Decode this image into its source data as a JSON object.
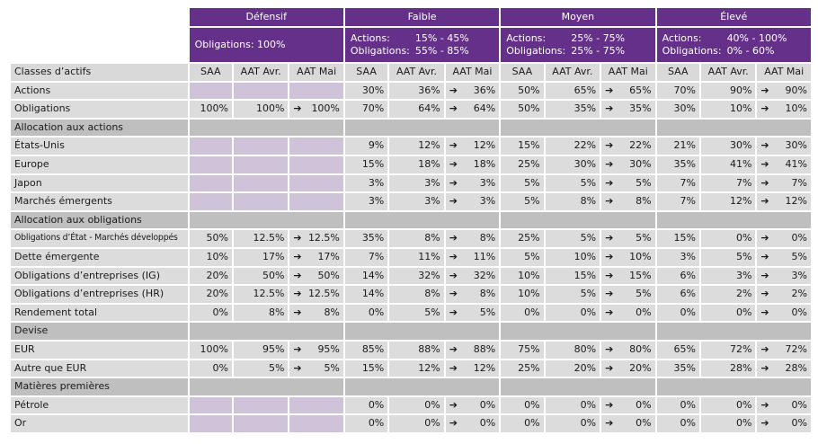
{
  "groups": [
    {
      "name": "Défensif",
      "lines": [
        {
          "k": "Obligations:",
          "v": "100%",
          "inline": true
        }
      ]
    },
    {
      "name": "Faible",
      "lines": [
        {
          "k": "Actions:",
          "v": "15% - 45%"
        },
        {
          "k": "Obligations:",
          "v": "55% - 85%"
        }
      ]
    },
    {
      "name": "Moyen",
      "lines": [
        {
          "k": "Actions:",
          "v": "25% - 75%"
        },
        {
          "k": "Obligations:",
          "v": "25% - 75%"
        }
      ]
    },
    {
      "name": "Élevé",
      "lines": [
        {
          "k": "Actions:",
          "v": "40% - 100%"
        },
        {
          "k": "Obligations:",
          "v": "0% - 60%"
        }
      ]
    }
  ],
  "header_label": "Classes d’actifs",
  "subcols": [
    "SAA",
    "AAT Avr.",
    "AAT Mai"
  ],
  "arrow": "➔",
  "rows": [
    {
      "label": "Actions",
      "cells": [
        [
          "",
          "",
          ""
        ],
        [
          "30%",
          "36%",
          "36%"
        ],
        [
          "50%",
          "65%",
          "65%"
        ],
        [
          "70%",
          "90%",
          "90%"
        ]
      ],
      "empty_def": true
    },
    {
      "label": "Obligations",
      "cells": [
        [
          "100%",
          "100%",
          "100%"
        ],
        [
          "70%",
          "64%",
          "64%"
        ],
        [
          "50%",
          "35%",
          "35%"
        ],
        [
          "30%",
          "10%",
          "10%"
        ]
      ]
    },
    {
      "label": "Allocation aux actions",
      "section": true
    },
    {
      "label": "États-Unis",
      "cells": [
        [
          "",
          "",
          ""
        ],
        [
          "9%",
          "12%",
          "12%"
        ],
        [
          "15%",
          "22%",
          "22%"
        ],
        [
          "21%",
          "30%",
          "30%"
        ]
      ],
      "empty_def": true
    },
    {
      "label": "Europe",
      "cells": [
        [
          "",
          "",
          ""
        ],
        [
          "15%",
          "18%",
          "18%"
        ],
        [
          "25%",
          "30%",
          "30%"
        ],
        [
          "35%",
          "41%",
          "41%"
        ]
      ],
      "empty_def": true
    },
    {
      "label": "Japon",
      "cells": [
        [
          "",
          "",
          ""
        ],
        [
          "3%",
          "3%",
          "3%"
        ],
        [
          "5%",
          "5%",
          "5%"
        ],
        [
          "7%",
          "7%",
          "7%"
        ]
      ],
      "empty_def": true
    },
    {
      "label": "Marchés émergents",
      "cells": [
        [
          "",
          "",
          ""
        ],
        [
          "3%",
          "3%",
          "3%"
        ],
        [
          "5%",
          "8%",
          "8%"
        ],
        [
          "7%",
          "12%",
          "12%"
        ]
      ],
      "empty_def": true
    },
    {
      "label": "Allocation aux obligations",
      "section": true
    },
    {
      "label": "Obligations d’État - Marchés développés",
      "small": true,
      "cells": [
        [
          "50%",
          "12.5%",
          "12.5%"
        ],
        [
          "35%",
          "8%",
          "8%"
        ],
        [
          "25%",
          "5%",
          "5%"
        ],
        [
          "15%",
          "0%",
          "0%"
        ]
      ]
    },
    {
      "label": "Dette émergente",
      "cells": [
        [
          "10%",
          "17%",
          "17%"
        ],
        [
          "7%",
          "11%",
          "11%"
        ],
        [
          "5%",
          "10%",
          "10%"
        ],
        [
          "3%",
          "5%",
          "5%"
        ]
      ]
    },
    {
      "label": "Obligations d’entreprises (IG)",
      "cells": [
        [
          "20%",
          "50%",
          "50%"
        ],
        [
          "14%",
          "32%",
          "32%"
        ],
        [
          "10%",
          "15%",
          "15%"
        ],
        [
          "6%",
          "3%",
          "3%"
        ]
      ]
    },
    {
      "label": "Obligations d’entreprises (HR)",
      "cells": [
        [
          "20%",
          "12.5%",
          "12.5%"
        ],
        [
          "14%",
          "8%",
          "8%"
        ],
        [
          "10%",
          "5%",
          "5%"
        ],
        [
          "6%",
          "2%",
          "2%"
        ]
      ]
    },
    {
      "label": "Rendement total",
      "cells": [
        [
          "0%",
          "8%",
          "8%"
        ],
        [
          "0%",
          "5%",
          "5%"
        ],
        [
          "0%",
          "0%",
          "0%"
        ],
        [
          "0%",
          "0%",
          "0%"
        ]
      ]
    },
    {
      "label": "Devise",
      "section": true
    },
    {
      "label": "EUR",
      "cells": [
        [
          "100%",
          "95%",
          "95%"
        ],
        [
          "85%",
          "88%",
          "88%"
        ],
        [
          "75%",
          "80%",
          "80%"
        ],
        [
          "65%",
          "72%",
          "72%"
        ]
      ]
    },
    {
      "label": "Autre que EUR",
      "cells": [
        [
          "0%",
          "5%",
          "5%"
        ],
        [
          "15%",
          "12%",
          "12%"
        ],
        [
          "25%",
          "20%",
          "20%"
        ],
        [
          "35%",
          "28%",
          "28%"
        ]
      ]
    },
    {
      "label": "Matières premières",
      "section": true
    },
    {
      "label": "Pétrole",
      "cells": [
        [
          "",
          "",
          ""
        ],
        [
          "0%",
          "0%",
          "0%"
        ],
        [
          "0%",
          "0%",
          "0%"
        ],
        [
          "0%",
          "0%",
          "0%"
        ]
      ],
      "empty_def": true
    },
    {
      "label": "Or",
      "cells": [
        [
          "",
          "",
          ""
        ],
        [
          "0%",
          "0%",
          "0%"
        ],
        [
          "0%",
          "0%",
          "0%"
        ],
        [
          "0%",
          "0%",
          "0%"
        ]
      ],
      "empty_def": true
    }
  ]
}
